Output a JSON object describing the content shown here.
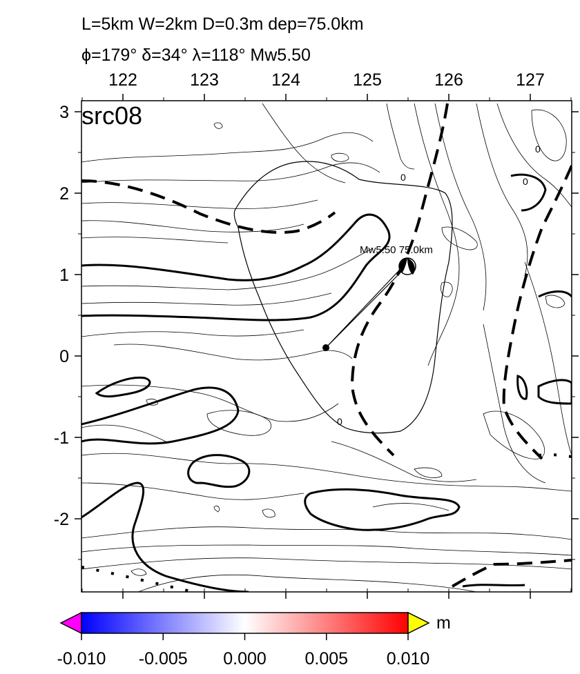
{
  "header": {
    "line1": "L=5km W=2km D=0.3m dep=75.0km",
    "line2": "ϕ=179° δ=34° λ=118° Mw5.50"
  },
  "map": {
    "panel_label": "src08",
    "x_ticks": [
      "122",
      "123",
      "124",
      "125",
      "126",
      "127"
    ],
    "y_ticks": [
      "3",
      "2",
      "1",
      "0",
      "-1",
      "-2"
    ],
    "contour_labels": [
      "0",
      "0",
      "0",
      "0"
    ],
    "source_label": "Mw5.50  75.0km",
    "colors": {
      "frame": "#000000",
      "contour": "#000000",
      "background": "#ffffff"
    }
  },
  "colorbar": {
    "unit": "m",
    "tick_labels": [
      "-0.010",
      "-0.005",
      "0.000",
      "0.005",
      "0.010"
    ],
    "range": [
      -0.01,
      0.01
    ],
    "colors": {
      "low_overflow": "#ff00ff",
      "min": "#0000ff",
      "mid": "#ffffff",
      "max": "#ff0000",
      "high_overflow": "#ffff00"
    }
  }
}
